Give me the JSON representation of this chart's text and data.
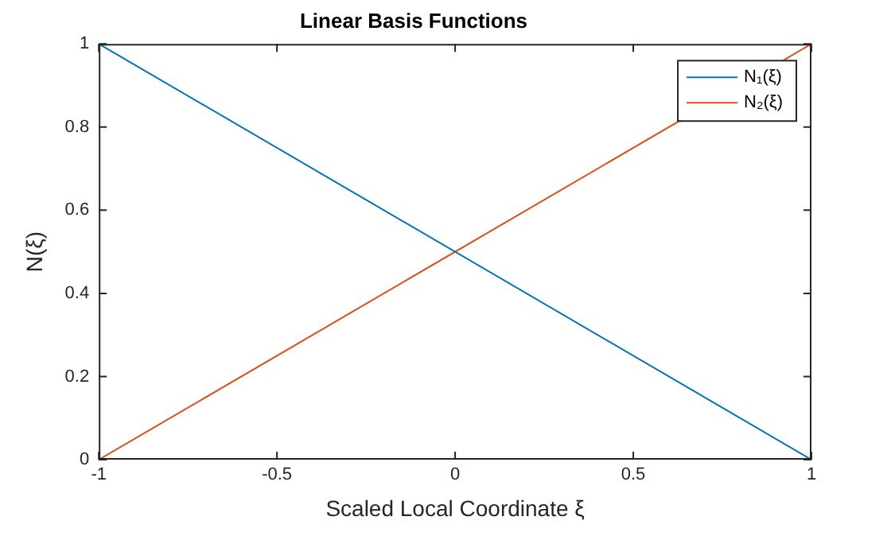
{
  "chart_data": {
    "type": "line",
    "title": "Linear Basis Functions",
    "xlabel": "Scaled Local Coordinate ξ",
    "ylabel": "N(ξ)",
    "x": [
      -1,
      1
    ],
    "series": [
      {
        "name": "N₁(ξ)",
        "color": "#0072bd",
        "values": [
          1,
          0
        ]
      },
      {
        "name": "N₂(ξ)",
        "color": "#d95319",
        "values": [
          0,
          1
        ]
      }
    ],
    "xlim": [
      -1,
      1
    ],
    "ylim": [
      0,
      1
    ],
    "xticks": [
      -1,
      -0.5,
      0,
      0.5,
      1
    ],
    "yticks": [
      0,
      0.2,
      0.4,
      0.6,
      0.8,
      1
    ],
    "grid": false,
    "legend": "top right",
    "marker": "none",
    "line_style": "solid"
  }
}
